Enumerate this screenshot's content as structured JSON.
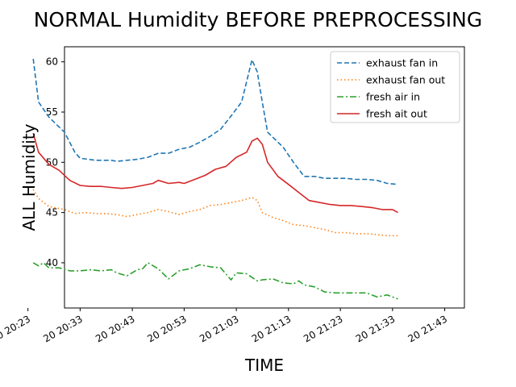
{
  "chart_data": {
    "type": "line",
    "title": "NORMAL Humidity BEFORE PREPROCESSING",
    "xlabel": "TIME",
    "ylabel": "ALL Humidity",
    "xlim": [
      20.5,
      21.78
    ],
    "ylim": [
      35.5,
      61.5
    ],
    "yticks": [
      40,
      45,
      50,
      55,
      60
    ],
    "xticks": [
      {
        "label": "20 20:23",
        "value": 20.383
      },
      {
        "label": "20 20:33",
        "value": 20.55
      },
      {
        "label": "20 20:43",
        "value": 20.717
      },
      {
        "label": "20 20:53",
        "value": 20.883
      },
      {
        "label": "20 21:03",
        "value": 21.05
      },
      {
        "label": "20 21:13",
        "value": 21.217
      },
      {
        "label": "20 21:23",
        "value": 21.383
      },
      {
        "label": "20 21:33",
        "value": 21.55
      },
      {
        "label": "20 21:43",
        "value": 21.717
      }
    ],
    "grid": false,
    "legend_position": "top-right",
    "series": [
      {
        "name": "exhaust fan in",
        "color": "#1f77b4",
        "dash": "6,3",
        "points": [
          [
            20.4,
            60.3
          ],
          [
            20.417,
            56.0
          ],
          [
            20.45,
            54.5
          ],
          [
            20.5,
            53.0
          ],
          [
            20.533,
            51.0
          ],
          [
            20.55,
            50.4
          ],
          [
            20.6,
            50.2
          ],
          [
            20.65,
            50.2
          ],
          [
            20.667,
            50.1
          ],
          [
            20.7,
            50.2
          ],
          [
            20.733,
            50.3
          ],
          [
            20.767,
            50.5
          ],
          [
            20.8,
            50.9
          ],
          [
            20.833,
            50.9
          ],
          [
            20.867,
            51.3
          ],
          [
            20.9,
            51.5
          ],
          [
            20.933,
            52.0
          ],
          [
            20.967,
            52.6
          ],
          [
            21.0,
            53.3
          ],
          [
            21.033,
            54.6
          ],
          [
            21.067,
            56.0
          ],
          [
            21.1,
            60.2
          ],
          [
            21.117,
            59.0
          ],
          [
            21.133,
            56.0
          ],
          [
            21.15,
            53.0
          ],
          [
            21.2,
            51.5
          ],
          [
            21.233,
            50.0
          ],
          [
            21.267,
            48.6
          ],
          [
            21.3,
            48.6
          ],
          [
            21.333,
            48.4
          ],
          [
            21.367,
            48.4
          ],
          [
            21.4,
            48.4
          ],
          [
            21.433,
            48.3
          ],
          [
            21.467,
            48.3
          ],
          [
            21.5,
            48.2
          ],
          [
            21.533,
            47.9
          ],
          [
            21.567,
            47.8
          ]
        ]
      },
      {
        "name": "exhaust fan out",
        "color": "#ff7f0e",
        "dash": "1.5,3",
        "points": [
          [
            20.4,
            47.3
          ],
          [
            20.417,
            46.4
          ],
          [
            20.45,
            45.6
          ],
          [
            20.5,
            45.3
          ],
          [
            20.533,
            44.9
          ],
          [
            20.567,
            45.0
          ],
          [
            20.6,
            44.9
          ],
          [
            20.633,
            44.9
          ],
          [
            20.667,
            44.8
          ],
          [
            20.7,
            44.6
          ],
          [
            20.733,
            44.8
          ],
          [
            20.767,
            45.0
          ],
          [
            20.8,
            45.3
          ],
          [
            20.833,
            45.1
          ],
          [
            20.867,
            44.8
          ],
          [
            20.9,
            45.1
          ],
          [
            20.933,
            45.3
          ],
          [
            20.967,
            45.7
          ],
          [
            21.0,
            45.8
          ],
          [
            21.033,
            46.0
          ],
          [
            21.067,
            46.2
          ],
          [
            21.1,
            46.5
          ],
          [
            21.117,
            46.2
          ],
          [
            21.133,
            45.0
          ],
          [
            21.167,
            44.5
          ],
          [
            21.2,
            44.2
          ],
          [
            21.233,
            43.8
          ],
          [
            21.267,
            43.7
          ],
          [
            21.3,
            43.5
          ],
          [
            21.333,
            43.3
          ],
          [
            21.367,
            43.0
          ],
          [
            21.4,
            43.0
          ],
          [
            21.433,
            42.9
          ],
          [
            21.467,
            42.9
          ],
          [
            21.5,
            42.8
          ],
          [
            21.533,
            42.7
          ],
          [
            21.567,
            42.7
          ]
        ]
      },
      {
        "name": "fresh air in",
        "color": "#2ca02c",
        "dash": "8,3,2,3",
        "points": [
          [
            20.4,
            40.0
          ],
          [
            20.417,
            39.7
          ],
          [
            20.433,
            40.0
          ],
          [
            20.45,
            39.5
          ],
          [
            20.483,
            39.5
          ],
          [
            20.517,
            39.2
          ],
          [
            20.55,
            39.2
          ],
          [
            20.583,
            39.3
          ],
          [
            20.617,
            39.2
          ],
          [
            20.65,
            39.3
          ],
          [
            20.667,
            39.0
          ],
          [
            20.7,
            38.7
          ],
          [
            20.733,
            39.3
          ],
          [
            20.75,
            39.4
          ],
          [
            20.767,
            40.0
          ],
          [
            20.8,
            39.4
          ],
          [
            20.833,
            38.4
          ],
          [
            20.867,
            39.2
          ],
          [
            20.9,
            39.4
          ],
          [
            20.933,
            39.8
          ],
          [
            20.967,
            39.6
          ],
          [
            21.0,
            39.5
          ],
          [
            21.033,
            38.3
          ],
          [
            21.05,
            39.0
          ],
          [
            21.083,
            38.9
          ],
          [
            21.117,
            38.2
          ],
          [
            21.133,
            38.3
          ],
          [
            21.167,
            38.4
          ],
          [
            21.2,
            38.0
          ],
          [
            21.233,
            37.9
          ],
          [
            21.25,
            38.2
          ],
          [
            21.267,
            37.8
          ],
          [
            21.3,
            37.6
          ],
          [
            21.333,
            37.1
          ],
          [
            21.367,
            37.0
          ],
          [
            21.4,
            37.0
          ],
          [
            21.433,
            37.0
          ],
          [
            21.467,
            37.0
          ],
          [
            21.5,
            36.6
          ],
          [
            21.533,
            36.8
          ],
          [
            21.567,
            36.4
          ]
        ]
      },
      {
        "name": "fresh ait out",
        "color": "#d62728",
        "dash": "",
        "points": [
          [
            20.4,
            52.9
          ],
          [
            20.417,
            51.0
          ],
          [
            20.45,
            49.8
          ],
          [
            20.483,
            49.2
          ],
          [
            20.517,
            48.2
          ],
          [
            20.55,
            47.7
          ],
          [
            20.583,
            47.6
          ],
          [
            20.617,
            47.6
          ],
          [
            20.65,
            47.5
          ],
          [
            20.683,
            47.4
          ],
          [
            20.717,
            47.5
          ],
          [
            20.75,
            47.7
          ],
          [
            20.783,
            47.9
          ],
          [
            20.8,
            48.2
          ],
          [
            20.833,
            47.9
          ],
          [
            20.867,
            48.0
          ],
          [
            20.883,
            47.9
          ],
          [
            20.917,
            48.3
          ],
          [
            20.95,
            48.7
          ],
          [
            20.983,
            49.3
          ],
          [
            21.017,
            49.6
          ],
          [
            21.05,
            50.5
          ],
          [
            21.083,
            51.0
          ],
          [
            21.1,
            52.1
          ],
          [
            21.117,
            52.4
          ],
          [
            21.133,
            51.8
          ],
          [
            21.15,
            50.0
          ],
          [
            21.183,
            48.6
          ],
          [
            21.217,
            47.8
          ],
          [
            21.25,
            47.0
          ],
          [
            21.283,
            46.2
          ],
          [
            21.317,
            46.0
          ],
          [
            21.35,
            45.8
          ],
          [
            21.383,
            45.7
          ],
          [
            21.417,
            45.7
          ],
          [
            21.45,
            45.6
          ],
          [
            21.483,
            45.5
          ],
          [
            21.517,
            45.3
          ],
          [
            21.55,
            45.3
          ],
          [
            21.567,
            45.0
          ]
        ]
      }
    ]
  }
}
